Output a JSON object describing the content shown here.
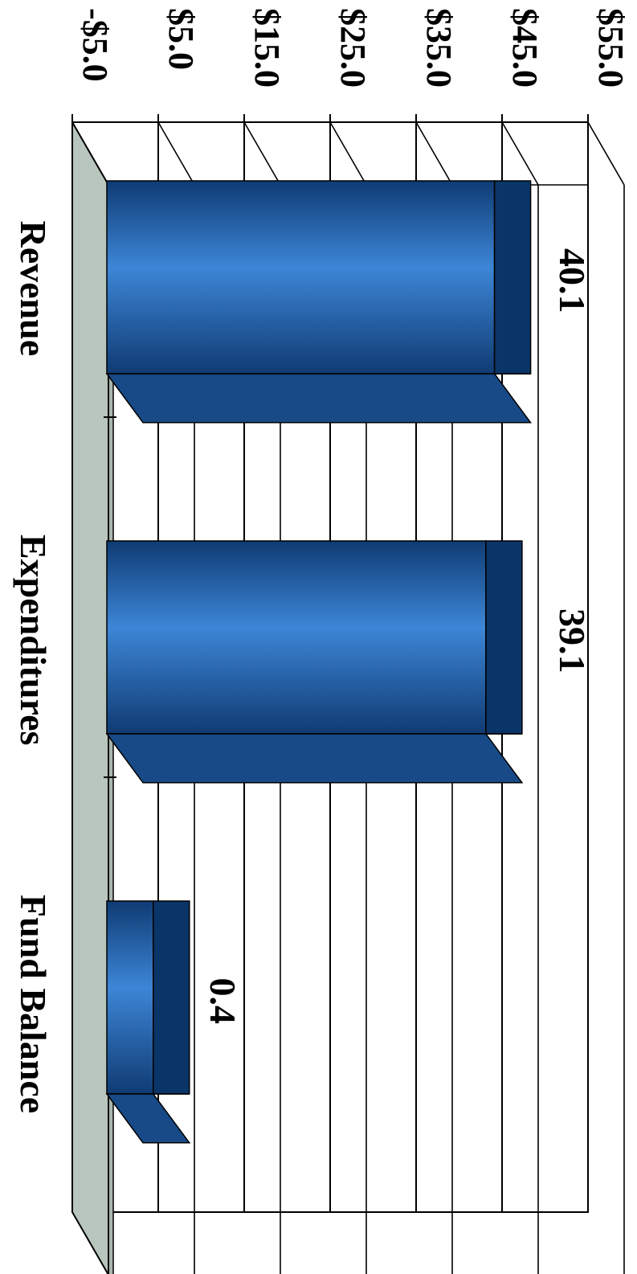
{
  "chart_data": {
    "type": "bar",
    "title": "",
    "xlabel": "",
    "ylabel": "",
    "categories": [
      "Revenue",
      "Expenditures",
      "Fund Balance"
    ],
    "values": [
      40.1,
      39.1,
      0.4
    ],
    "data_labels": [
      "40.1",
      "39.1",
      "0.4"
    ],
    "ylim": [
      -5,
      55
    ],
    "ticks": [
      -5,
      5,
      15,
      25,
      35,
      45,
      55
    ],
    "tick_labels": [
      "-$5.0",
      "$5.0",
      "$15.0",
      "$25.0",
      "$35.0",
      "$45.0",
      "$55.0"
    ],
    "style": "3d-column",
    "orientation": "rotated 90 degrees clockwise",
    "grid": true,
    "legend": "none"
  },
  "colors": {
    "bar_front": "#1e5ba8",
    "bar_front_light": "#3d86d6",
    "bar_front_dark": "#0f3b73",
    "bar_top": "#0a3568",
    "bar_side": "#174a86",
    "floor": "#b9c6bd",
    "gridline": "#000000",
    "background": "#ffffff"
  }
}
